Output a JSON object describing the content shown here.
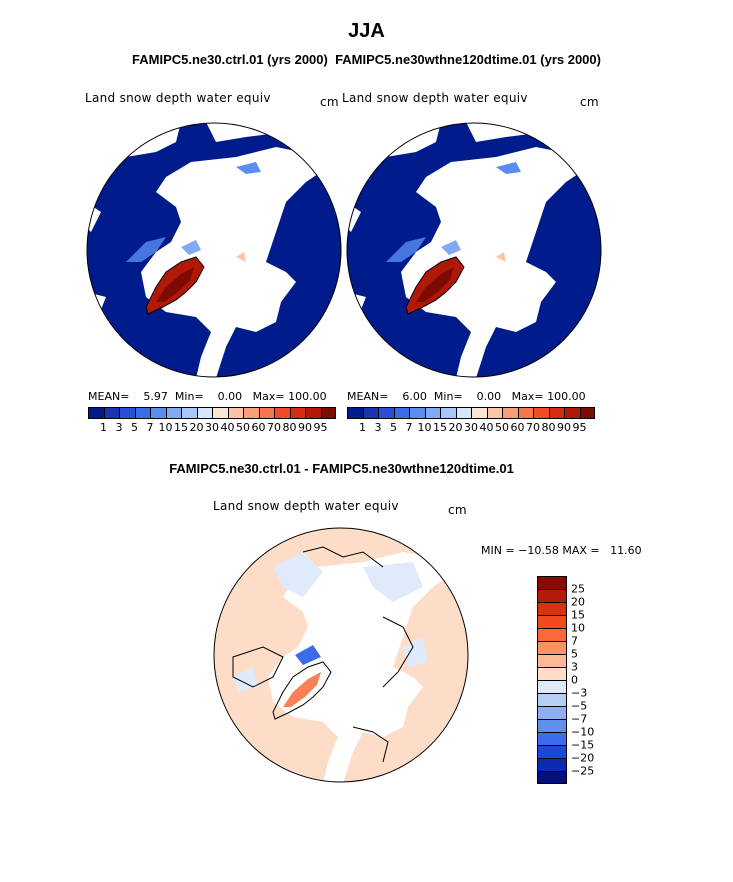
{
  "season": "JJA",
  "top_panels_header": "FAMIPC5.ne30.ctrl.01 (yrs 2000)  FAMIPC5.ne30wthne120dtime.01 (yrs 2000)",
  "panels": [
    {
      "variable": "Land snow depth water equiv",
      "units": "cm",
      "stats": {
        "mean_label": "MEAN=",
        "mean": "5.97",
        "min_label": "Min=",
        "min": "0.00",
        "max_label": "Max=",
        "max": "100.00"
      }
    },
    {
      "variable": "Land snow depth water equiv",
      "units": "cm",
      "stats": {
        "mean_label": "MEAN=",
        "mean": "6.00",
        "min_label": "Min=",
        "min": "0.00",
        "max_label": "Max=",
        "max": "100.00"
      }
    }
  ],
  "abs_colorbar": {
    "ticks": [
      "1",
      "3",
      "5",
      "7",
      "10",
      "15",
      "20",
      "30",
      "40",
      "50",
      "60",
      "70",
      "80",
      "90",
      "95"
    ],
    "colors": [
      "#001c8c",
      "#1a34b0",
      "#2a4fd6",
      "#3a6de8",
      "#5a8df0",
      "#82aaf4",
      "#a8c6f8",
      "#d6e6fb",
      "#fde5d6",
      "#fcc4a6",
      "#fa9e7a",
      "#f7764e",
      "#f04c26",
      "#d62d12",
      "#b01808",
      "#7e0a04"
    ]
  },
  "diff_panel": {
    "title": "FAMIPC5.ne30.ctrl.01 - FAMIPC5.ne30wthne120dtime.01",
    "variable": "Land snow depth water equiv",
    "units": "cm",
    "minmax": "MIN = −10.58 MAX =   11.60"
  },
  "diff_colorbar": {
    "ticks": [
      "25",
      "20",
      "15",
      "10",
      "7",
      "5",
      "3",
      "0",
      "−3",
      "−5",
      "−7",
      "−10",
      "−15",
      "−20",
      "−25"
    ],
    "colors": [
      "#8c0a04",
      "#b41a08",
      "#d83010",
      "#f04a1c",
      "#f86a3a",
      "#fa9266",
      "#fcb896",
      "#fddcc8",
      "#dfeafb",
      "#b6cef6",
      "#8cb0f2",
      "#608ef0",
      "#3c6cec",
      "#1c48d8",
      "#0c2cb0",
      "#021080"
    ]
  }
}
